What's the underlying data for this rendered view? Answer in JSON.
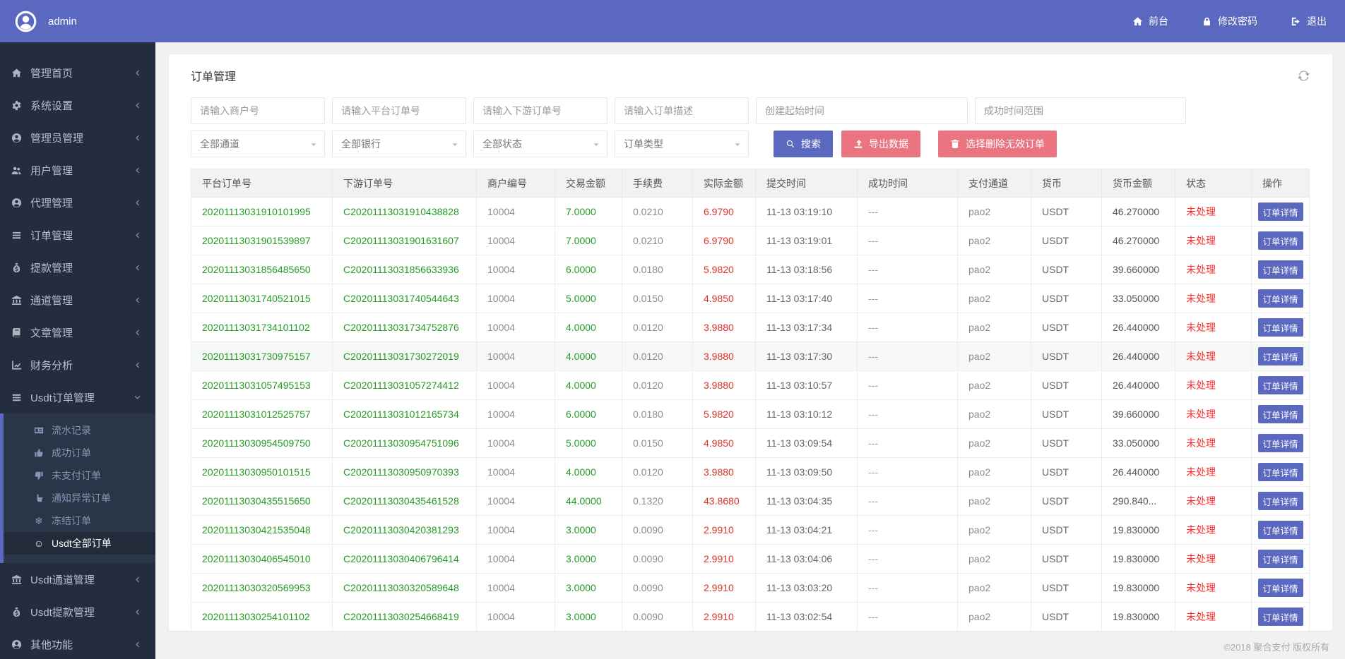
{
  "navbar": {
    "brand": "admin",
    "links": [
      {
        "key": "frontend",
        "label": "前台",
        "icon": "home"
      },
      {
        "key": "change-password",
        "label": "修改密码",
        "icon": "lock"
      },
      {
        "key": "logout",
        "label": "退出",
        "icon": "signout"
      }
    ]
  },
  "sidebar": {
    "items": [
      {
        "key": "dashboard",
        "label": "管理首页",
        "icon": "home"
      },
      {
        "key": "system",
        "label": "系统设置",
        "icon": "cogs"
      },
      {
        "key": "admins",
        "label": "管理员管理",
        "icon": "user-circle"
      },
      {
        "key": "users",
        "label": "用户管理",
        "icon": "users"
      },
      {
        "key": "agents",
        "label": "代理管理",
        "icon": "user-circle"
      },
      {
        "key": "orders",
        "label": "订单管理",
        "icon": "list"
      },
      {
        "key": "withdrawals",
        "label": "提款管理",
        "icon": "money-bag"
      },
      {
        "key": "channels",
        "label": "通道管理",
        "icon": "bank"
      },
      {
        "key": "articles",
        "label": "文章管理",
        "icon": "book"
      },
      {
        "key": "finance",
        "label": "财务分析",
        "icon": "chart"
      },
      {
        "key": "usdt-orders",
        "label": "Usdt订单管理",
        "icon": "list",
        "expanded": true,
        "children": [
          {
            "key": "flow-records",
            "label": "流水记录",
            "icon": "id-card"
          },
          {
            "key": "success-orders",
            "label": "成功订单",
            "icon": "thumb-up"
          },
          {
            "key": "unpaid-orders",
            "label": "未支付订单",
            "icon": "thumb-down"
          },
          {
            "key": "abnormal-orders",
            "label": "通知异常订单",
            "icon": "hand-point"
          },
          {
            "key": "frozen-orders",
            "label": "冻结订单",
            "icon": "snowflake"
          },
          {
            "key": "usdt-all-orders",
            "label": "Usdt全部订单",
            "icon": "smile",
            "active": true
          }
        ]
      },
      {
        "key": "usdt-channels",
        "label": "Usdt通道管理",
        "icon": "bank"
      },
      {
        "key": "usdt-withdrawals",
        "label": "Usdt提款管理",
        "icon": "money-bag"
      },
      {
        "key": "other",
        "label": "其他功能",
        "icon": "user-circle"
      }
    ]
  },
  "card": {
    "title": "订单管理",
    "filters": {
      "text_inputs": [
        {
          "key": "merchant-no",
          "placeholder": "请输入商户号"
        },
        {
          "key": "platform-order-no",
          "placeholder": "请输入平台订单号"
        },
        {
          "key": "downstream-order-no",
          "placeholder": "请输入下游订单号"
        },
        {
          "key": "order-desc",
          "placeholder": "请输入订单描述"
        },
        {
          "key": "create-time",
          "placeholder": "创建起始时间"
        },
        {
          "key": "success-time",
          "placeholder": "成功时间范围"
        }
      ],
      "selects": [
        {
          "key": "channel",
          "value": "全部通道"
        },
        {
          "key": "bank",
          "value": "全部银行"
        },
        {
          "key": "status",
          "value": "全部状态"
        },
        {
          "key": "order-type",
          "value": "订单类型"
        }
      ],
      "buttons": [
        {
          "key": "search",
          "label": "搜索",
          "icon": "search",
          "style": "primary"
        },
        {
          "key": "export",
          "label": "导出数据",
          "icon": "export",
          "style": "danger"
        },
        {
          "key": "delete-invalid",
          "label": "选择删除无效订单",
          "icon": "trash",
          "style": "danger"
        }
      ]
    },
    "table": {
      "headers": [
        "平台订单号",
        "下游订单号",
        "商户编号",
        "交易金额",
        "手续费",
        "实际金额",
        "提交时间",
        "成功时间",
        "支付通道",
        "货币",
        "货币金额",
        "状态",
        "操作"
      ],
      "action_label": "订单详情",
      "highlighted_row": 5,
      "rows": [
        [
          "20201113031910101995",
          "C20201113031910438828",
          "10004",
          "7.0000",
          "0.0210",
          "6.9790",
          "11-13 03:19:10",
          "---",
          "pao2",
          "USDT",
          "46.270000",
          "未处理"
        ],
        [
          "20201113031901539897",
          "C20201113031901631607",
          "10004",
          "7.0000",
          "0.0210",
          "6.9790",
          "11-13 03:19:01",
          "---",
          "pao2",
          "USDT",
          "46.270000",
          "未处理"
        ],
        [
          "20201113031856485650",
          "C20201113031856633936",
          "10004",
          "6.0000",
          "0.0180",
          "5.9820",
          "11-13 03:18:56",
          "---",
          "pao2",
          "USDT",
          "39.660000",
          "未处理"
        ],
        [
          "20201113031740521015",
          "C20201113031740544643",
          "10004",
          "5.0000",
          "0.0150",
          "4.9850",
          "11-13 03:17:40",
          "---",
          "pao2",
          "USDT",
          "33.050000",
          "未处理"
        ],
        [
          "20201113031734101102",
          "C20201113031734752876",
          "10004",
          "4.0000",
          "0.0120",
          "3.9880",
          "11-13 03:17:34",
          "---",
          "pao2",
          "USDT",
          "26.440000",
          "未处理"
        ],
        [
          "20201113031730975157",
          "C20201113031730272019",
          "10004",
          "4.0000",
          "0.0120",
          "3.9880",
          "11-13 03:17:30",
          "---",
          "pao2",
          "USDT",
          "26.440000",
          "未处理"
        ],
        [
          "20201113031057495153",
          "C20201113031057274412",
          "10004",
          "4.0000",
          "0.0120",
          "3.9880",
          "11-13 03:10:57",
          "---",
          "pao2",
          "USDT",
          "26.440000",
          "未处理"
        ],
        [
          "20201113031012525757",
          "C20201113031012165734",
          "10004",
          "6.0000",
          "0.0180",
          "5.9820",
          "11-13 03:10:12",
          "---",
          "pao2",
          "USDT",
          "39.660000",
          "未处理"
        ],
        [
          "20201113030954509750",
          "C20201113030954751096",
          "10004",
          "5.0000",
          "0.0150",
          "4.9850",
          "11-13 03:09:54",
          "---",
          "pao2",
          "USDT",
          "33.050000",
          "未处理"
        ],
        [
          "20201113030950101515",
          "C20201113030950970393",
          "10004",
          "4.0000",
          "0.0120",
          "3.9880",
          "11-13 03:09:50",
          "---",
          "pao2",
          "USDT",
          "26.440000",
          "未处理"
        ],
        [
          "20201113030435515650",
          "C20201113030435461528",
          "10004",
          "44.0000",
          "0.1320",
          "43.8680",
          "11-13 03:04:35",
          "---",
          "pao2",
          "USDT",
          "290.840...",
          "未处理"
        ],
        [
          "20201113030421535048",
          "C20201113030420381293",
          "10004",
          "3.0000",
          "0.0090",
          "2.9910",
          "11-13 03:04:21",
          "---",
          "pao2",
          "USDT",
          "19.830000",
          "未处理"
        ],
        [
          "20201113030406545010",
          "C20201113030406796414",
          "10004",
          "3.0000",
          "0.0090",
          "2.9910",
          "11-13 03:04:06",
          "---",
          "pao2",
          "USDT",
          "19.830000",
          "未处理"
        ],
        [
          "20201113030320569953",
          "C20201113030320589648",
          "10004",
          "3.0000",
          "0.0090",
          "2.9910",
          "11-13 03:03:20",
          "---",
          "pao2",
          "USDT",
          "19.830000",
          "未处理"
        ],
        [
          "20201113030254101102",
          "C20201113030254668419",
          "10004",
          "3.0000",
          "0.0090",
          "2.9910",
          "11-13 03:02:54",
          "---",
          "pao2",
          "USDT",
          "19.830000",
          "未处理"
        ]
      ]
    }
  },
  "footer": {
    "copyright": "©2018 聚合支付 版权所有"
  },
  "colors": {
    "primary": "#5A68C0",
    "danger_pink": "#EA7480",
    "sidebar_bg": "#232D3D",
    "submenu_bg": "#2A3547",
    "submenu_active_bg": "#212B3A",
    "amount_green": "#259B24",
    "amount_red": "#D9342B",
    "status_red": "#FF2D2D"
  }
}
